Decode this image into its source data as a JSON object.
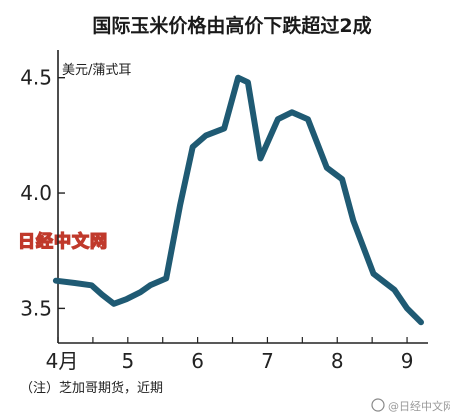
{
  "chart_data": {
    "type": "line",
    "title": "国际玉米价格由高价下跌超过2成",
    "unit_label": "美元/蒲式耳",
    "note": "（注）芝加哥期货，近期",
    "x_tick_labels": [
      "4月",
      "5",
      "6",
      "7",
      "8",
      "9"
    ],
    "x_range": [
      4.0,
      9.3
    ],
    "ylim": [
      3.35,
      4.62
    ],
    "y_ticks": [
      3.5,
      4.0,
      4.5
    ],
    "y_tick_labels": [
      "3.5",
      "4.0",
      "4.5"
    ],
    "series": [
      {
        "x": [
          3.97,
          4.24,
          4.48,
          4.63,
          4.8,
          4.98,
          5.18,
          5.32,
          5.55,
          5.75,
          5.93,
          6.12,
          6.38,
          6.58,
          6.72,
          6.9,
          7.15,
          7.35,
          7.58,
          7.85,
          8.07,
          8.23,
          8.52,
          8.82,
          9.0,
          9.2
        ],
        "y": [
          3.62,
          3.61,
          3.6,
          3.56,
          3.52,
          3.54,
          3.57,
          3.6,
          3.63,
          3.95,
          4.2,
          4.25,
          4.28,
          4.5,
          4.48,
          4.15,
          4.32,
          4.35,
          4.32,
          4.11,
          4.06,
          3.88,
          3.65,
          3.58,
          3.5,
          3.44
        ]
      }
    ],
    "line_color": "#1f5a73",
    "watermark_text": "日经中文网",
    "watermark_color": "#c0392b",
    "weibo_watermark": "@日经中文网",
    "grid": false
  }
}
